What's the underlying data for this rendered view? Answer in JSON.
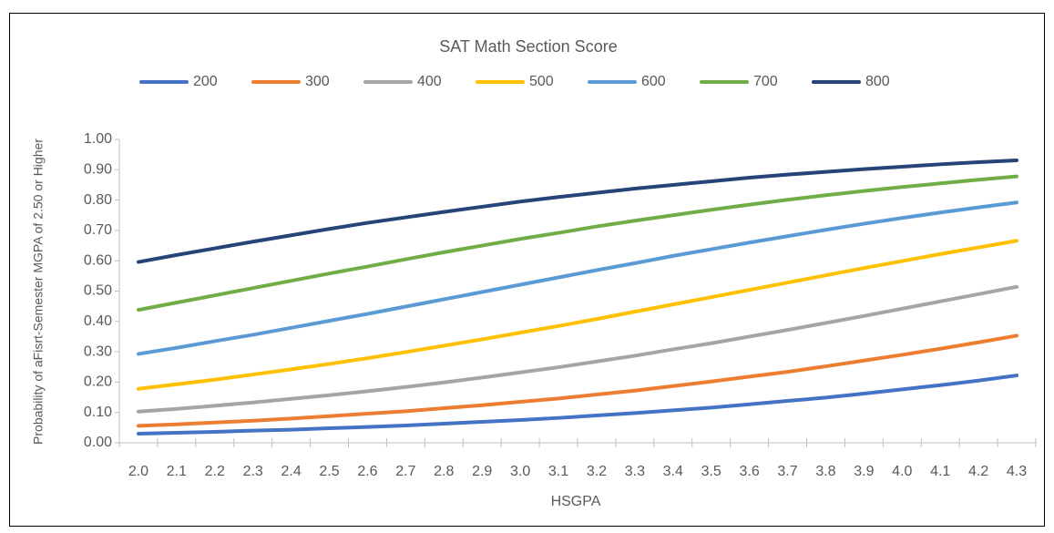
{
  "chart_data": {
    "type": "line",
    "legend_title": "SAT Math Section Score",
    "xlabel": "HSGPA",
    "ylabel": "Probability of aFisrt-Semester MGPA of 2.50 or Higher",
    "categories": [
      "2.0",
      "2.1",
      "2.2",
      "2.3",
      "2.4",
      "2.5",
      "2.6",
      "2.7",
      "2.8",
      "2.9",
      "3.0",
      "3.1",
      "3.2",
      "3.3",
      "3.4",
      "3.5",
      "3.6",
      "3.7",
      "3.8",
      "3.9",
      "4.0",
      "4.1",
      "4.2",
      "4.3"
    ],
    "ylim": [
      0,
      1
    ],
    "yticks": [
      {
        "value": 0,
        "label": "0.00"
      },
      {
        "value": 0.1,
        "label": "0.10"
      },
      {
        "value": 0.2,
        "label": "0.20"
      },
      {
        "value": 0.3,
        "label": "0.30"
      },
      {
        "value": 0.4,
        "label": "0.40"
      },
      {
        "value": 0.5,
        "label": "0.50"
      },
      {
        "value": 0.6,
        "label": "0.60"
      },
      {
        "value": 0.7,
        "label": "0.70"
      },
      {
        "value": 0.8,
        "label": "0.80"
      },
      {
        "value": 0.9,
        "label": "0.90"
      },
      {
        "value": 1,
        "label": "1.00"
      }
    ],
    "grid": false,
    "legend": "top",
    "series": [
      {
        "name": "200",
        "color": "#4472c4",
        "values": [
          0.03,
          0.033,
          0.036,
          0.04,
          0.043,
          0.048,
          0.052,
          0.057,
          0.063,
          0.069,
          0.075,
          0.082,
          0.09,
          0.098,
          0.107,
          0.116,
          0.127,
          0.138,
          0.149,
          0.162,
          0.176,
          0.19,
          0.205,
          0.222
        ]
      },
      {
        "name": "300",
        "color": "#ed7d31",
        "values": [
          0.056,
          0.061,
          0.067,
          0.073,
          0.08,
          0.088,
          0.096,
          0.104,
          0.114,
          0.124,
          0.135,
          0.146,
          0.159,
          0.172,
          0.187,
          0.202,
          0.218,
          0.234,
          0.252,
          0.271,
          0.29,
          0.31,
          0.331,
          0.353
        ]
      },
      {
        "name": "400",
        "color": "#a5a5a5",
        "values": [
          0.103,
          0.112,
          0.122,
          0.133,
          0.145,
          0.157,
          0.17,
          0.184,
          0.199,
          0.215,
          0.232,
          0.249,
          0.268,
          0.287,
          0.308,
          0.328,
          0.35,
          0.372,
          0.395,
          0.418,
          0.442,
          0.466,
          0.49,
          0.514
        ]
      },
      {
        "name": "500",
        "color": "#ffc000",
        "values": [
          0.178,
          0.193,
          0.208,
          0.225,
          0.242,
          0.26,
          0.279,
          0.299,
          0.32,
          0.341,
          0.363,
          0.385,
          0.408,
          0.432,
          0.456,
          0.48,
          0.504,
          0.528,
          0.552,
          0.576,
          0.599,
          0.622,
          0.644,
          0.666
        ]
      },
      {
        "name": "600",
        "color": "#5b9bd5",
        "values": [
          0.293,
          0.313,
          0.335,
          0.356,
          0.379,
          0.402,
          0.425,
          0.449,
          0.473,
          0.497,
          0.521,
          0.545,
          0.569,
          0.592,
          0.616,
          0.638,
          0.66,
          0.681,
          0.702,
          0.722,
          0.741,
          0.759,
          0.776,
          0.792
        ]
      },
      {
        "name": "700",
        "color": "#70ad47",
        "values": [
          0.438,
          0.462,
          0.486,
          0.51,
          0.534,
          0.558,
          0.581,
          0.605,
          0.628,
          0.65,
          0.672,
          0.692,
          0.713,
          0.732,
          0.75,
          0.768,
          0.785,
          0.801,
          0.816,
          0.83,
          0.843,
          0.855,
          0.867,
          0.878
        ]
      },
      {
        "name": "800",
        "color": "#264478",
        "values": [
          0.596,
          0.619,
          0.641,
          0.663,
          0.684,
          0.705,
          0.725,
          0.743,
          0.761,
          0.778,
          0.795,
          0.81,
          0.824,
          0.838,
          0.85,
          0.862,
          0.874,
          0.884,
          0.893,
          0.902,
          0.91,
          0.918,
          0.925,
          0.931
        ]
      }
    ]
  }
}
